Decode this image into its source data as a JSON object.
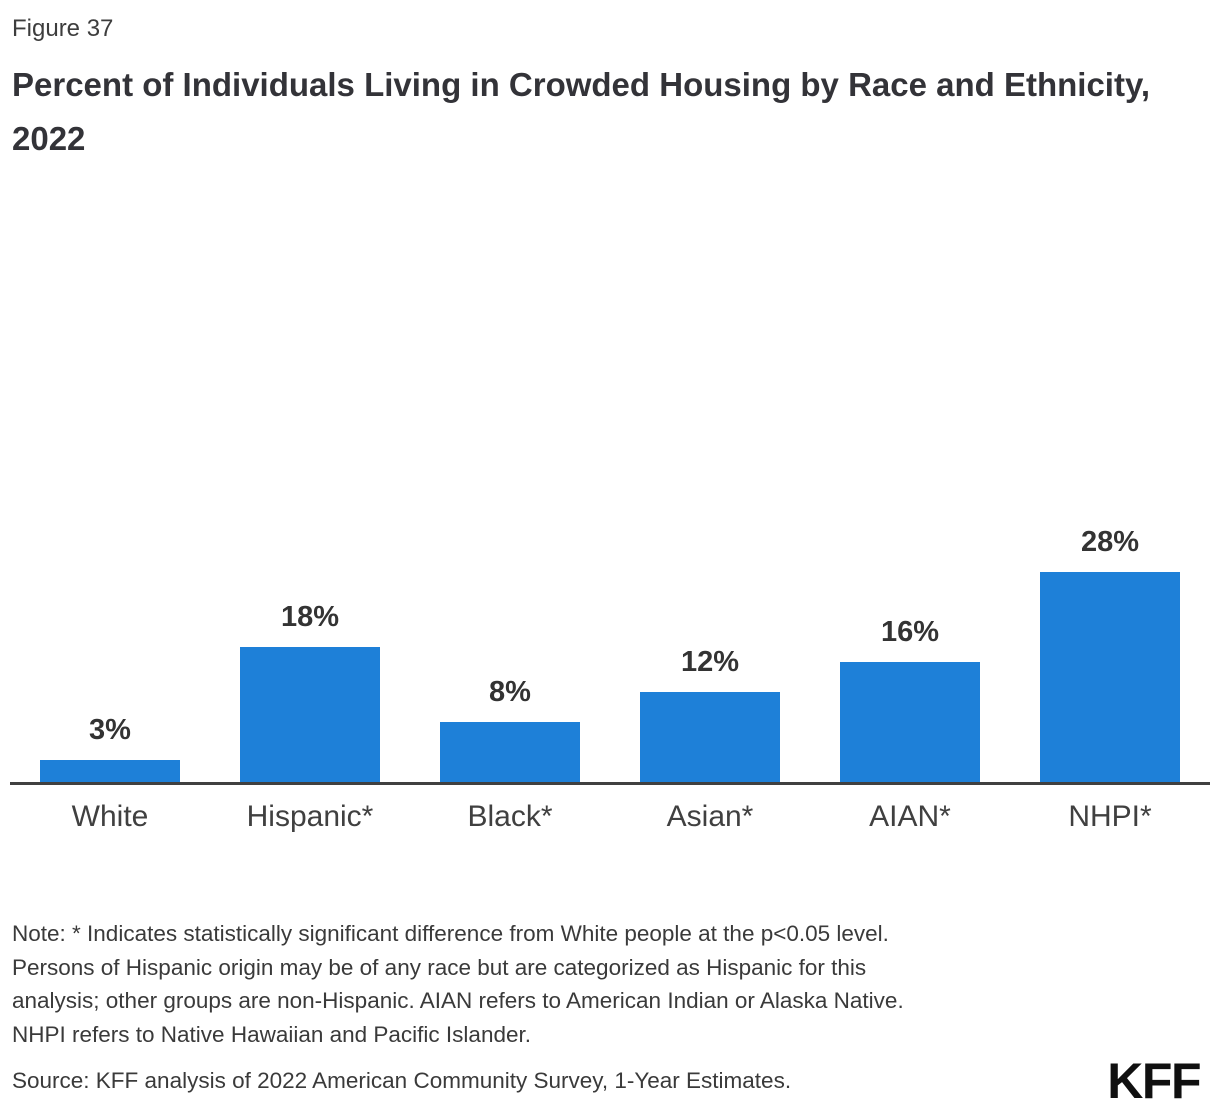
{
  "figure_label": "Figure 37",
  "title": "Percent of Individuals Living in Crowded Housing by Race and Ethnicity, 2022",
  "chart_data": {
    "type": "bar",
    "categories": [
      "White",
      "Hispanic*",
      "Black*",
      "Asian*",
      "AIAN*",
      "NHPI*"
    ],
    "values": [
      3,
      18,
      8,
      12,
      16,
      28
    ],
    "value_labels": [
      "3%",
      "18%",
      "8%",
      "12%",
      "16%",
      "28%"
    ],
    "title": "Percent of Individuals Living in Crowded Housing by Race and Ethnicity, 2022",
    "xlabel": "",
    "ylabel": "",
    "ylim": [
      0,
      30
    ],
    "grid": false,
    "legend": false,
    "bar_color": "#1E80D8",
    "axis_color": "#404040",
    "label_color": "#333333"
  },
  "note": {
    "lines": [
      "Note: * Indicates statistically significant difference from White people at the p<0.05 level.",
      "Persons of Hispanic origin may be of any race but are categorized as Hispanic for this",
      "analysis; other groups are non-Hispanic. AIAN refers to American Indian or Alaska Native.",
      "NHPI refers to Native Hawaiian and Pacific Islander."
    ]
  },
  "source": "Source: KFF analysis of 2022 American Community Survey, 1-Year Estimates.",
  "logo": "KFF"
}
